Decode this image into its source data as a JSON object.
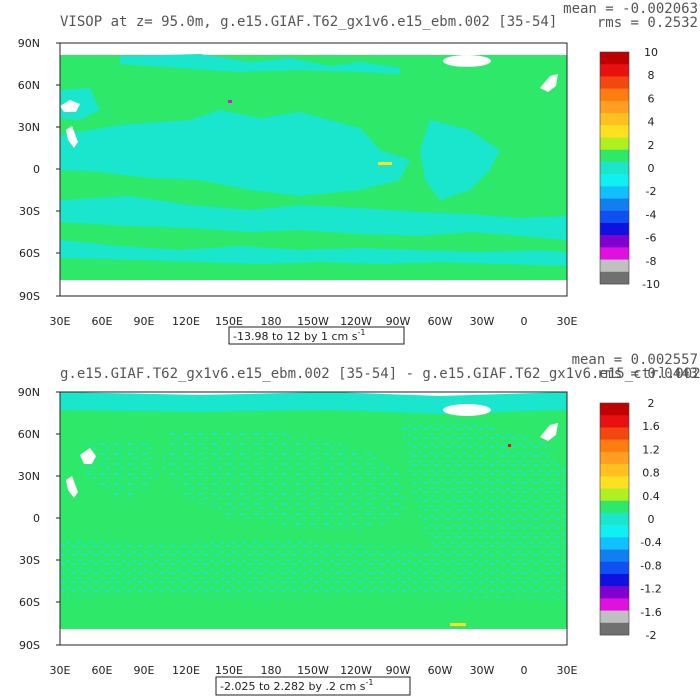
{
  "panels": [
    {
      "title": "VISOP at z=  95.0m, g.e15.GIAF.T62_gx1v6.e15_ebm.002 [35-54]",
      "mean_text": "mean = -0.002063",
      "rms_text": "rms = 0.2532",
      "range_text": "-13.98 to 12 by 1 cm s",
      "range_unit_sup": "-1",
      "colorbar_labels": [
        "10",
        "8",
        "6",
        "4",
        "2",
        "0",
        "-2",
        "-4",
        "-6",
        "-8",
        "-10"
      ]
    },
    {
      "title": "g.e15.GIAF.T62_gx1v6.e15_ebm.002 [35-54] - g.e15.GIAF.T62_gx1v6.e15_ctrl.002",
      "mean_text": "mean = 0.002557",
      "rms_text": "rms = 0.0443",
      "range_text": "-2.025 to 2.282 by .2 cm s",
      "range_unit_sup": "-1",
      "colorbar_labels": [
        "2",
        "1.6",
        "1.2",
        "0.8",
        "0.4",
        "0",
        "-0.4",
        "-0.8",
        "-1.2",
        "-1.6",
        "-2"
      ]
    }
  ],
  "axes": {
    "lat_labels": [
      "90N",
      "60N",
      "30N",
      "0",
      "30S",
      "60S",
      "90S"
    ],
    "lon_labels": [
      "30E",
      "60E",
      "90E",
      "120E",
      "150E",
      "180",
      "150W",
      "120W",
      "90W",
      "60W",
      "30W",
      "0",
      "30E"
    ]
  },
  "colors": {
    "land": "#ffffff",
    "ocean_near_zero": "#2ee86a",
    "ocean_negative": "#19e6cc",
    "colorbar": [
      "#c00000",
      "#e81010",
      "#f24810",
      "#ff7c10",
      "#ff9e20",
      "#ffc020",
      "#ffe020",
      "#b0f020",
      "#2ee86a",
      "#19e6cc",
      "#10f0f0",
      "#10c0ff",
      "#1080f0",
      "#1050f0",
      "#1010e0",
      "#8000d0",
      "#e010e0",
      "#c0c0c0",
      "#707070"
    ]
  },
  "chart_data": [
    {
      "type": "heatmap",
      "title": "VISOP at z=  95.0m, g.e15.GIAF.T62_gx1v6.e15_ebm.002 [35-54]",
      "x_ticks": [
        "30E",
        "60E",
        "90E",
        "120E",
        "150E",
        "180",
        "150W",
        "120W",
        "90W",
        "60W",
        "30W",
        "0",
        "30E"
      ],
      "y_ticks": [
        "90N",
        "60N",
        "30N",
        "0",
        "30S",
        "60S",
        "90S"
      ],
      "value_range": [
        -13.98,
        12
      ],
      "contour_interval": 1,
      "units": "cm s-1",
      "mean": -0.002063,
      "rms": 0.2532,
      "colorbar_ticks": [
        10,
        8,
        6,
        4,
        2,
        0,
        -2,
        -4,
        -6,
        -8,
        -10
      ]
    },
    {
      "type": "heatmap",
      "title": "g.e15.GIAF.T62_gx1v6.e15_ebm.002 [35-54] - g.e15.GIAF.T62_gx1v6.e15_ctrl.002",
      "x_ticks": [
        "30E",
        "60E",
        "90E",
        "120E",
        "150E",
        "180",
        "150W",
        "120W",
        "90W",
        "60W",
        "30W",
        "0",
        "30E"
      ],
      "y_ticks": [
        "90N",
        "60N",
        "30N",
        "0",
        "30S",
        "60S",
        "90S"
      ],
      "value_range": [
        -2.025,
        2.282
      ],
      "contour_interval": 0.2,
      "units": "cm s-1",
      "mean": 0.002557,
      "rms": 0.0443,
      "colorbar_ticks": [
        2,
        1.6,
        1.2,
        0.8,
        0.4,
        0,
        -0.4,
        -0.8,
        -1.2,
        -1.6,
        -2
      ]
    }
  ]
}
